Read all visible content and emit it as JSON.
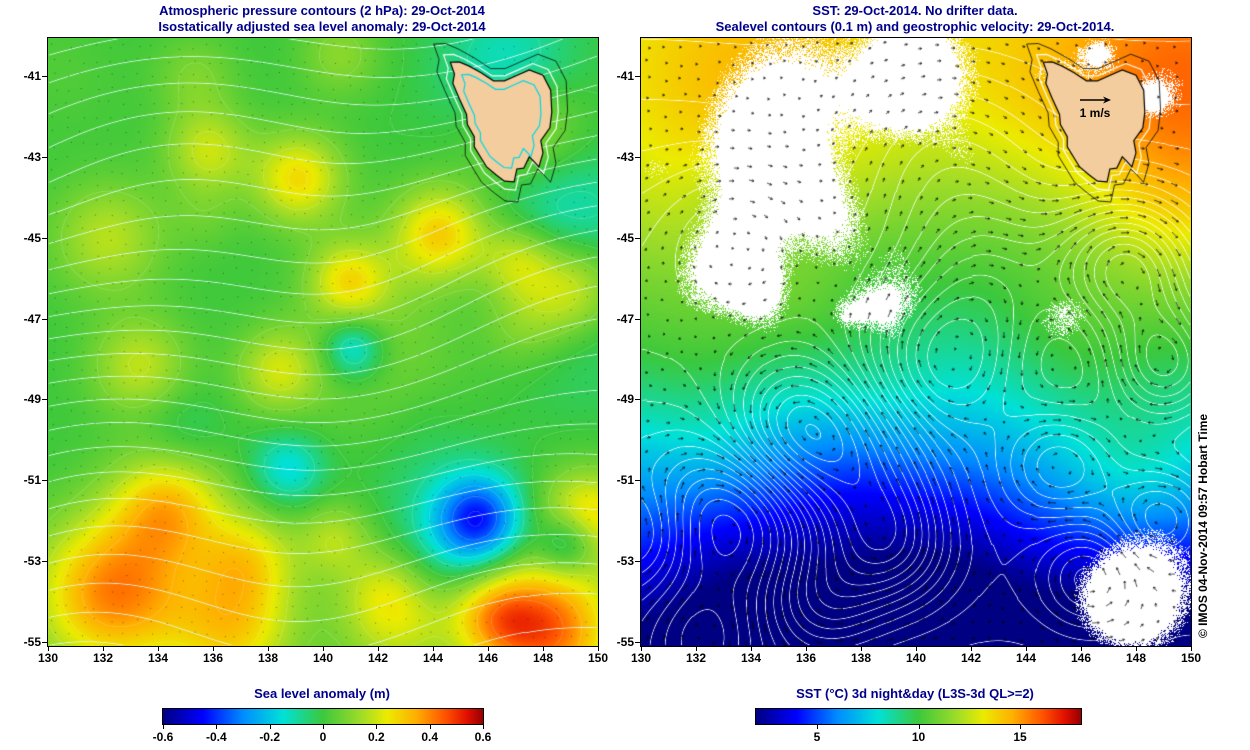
{
  "watermark": "© IMOS 04-Nov-2014 09:57 Hobart Time",
  "velocity_legend": "1 m/s",
  "colors": {
    "title": "#00008b",
    "tick": "#000000",
    "land": "#f3cd9e",
    "coast": "#000000",
    "pressure_contour": "#e1fbf6",
    "sealevel_contour": "#ffffff",
    "cloud": "#ffffff"
  },
  "chart_data": [
    {
      "type": "heatmap",
      "panel": "sea-level-anomaly",
      "title_lines": [
        "Atmospheric pressure contours (2 hPa): 29-Oct-2014",
        "Isostatically adjusted sea level anomaly: 29-Oct-2014"
      ],
      "xlim": [
        130,
        150
      ],
      "ylim": [
        -55.1,
        -40.06
      ],
      "x_ticks": [
        130,
        132,
        134,
        136,
        138,
        140,
        142,
        144,
        146,
        148,
        150
      ],
      "y_ticks": [
        -41,
        -43,
        -45,
        -47,
        -49,
        -51,
        -53,
        -55
      ],
      "grid": false,
      "colorbar": {
        "label": "Sea level anomaly (m)",
        "colormap": "jet",
        "range": [
          -0.6,
          0.6
        ],
        "ticks": [
          -0.6,
          -0.4,
          -0.2,
          0,
          0.2,
          0.4,
          0.6
        ],
        "units": "m",
        "position": "bottom"
      },
      "overlays": [
        "atmospheric pressure contours every 2 hPa (pale lines)",
        "sparse surface velocity dots (black)",
        "Tasmania land mask with coastline"
      ]
    },
    {
      "type": "heatmap",
      "panel": "sst",
      "title_lines": [
        "SST: 29-Oct-2014. No drifter data.",
        "Sealevel contours (0.1 m) and geostrophic velocity: 29-Oct-2014."
      ],
      "xlim": [
        130,
        150
      ],
      "ylim": [
        -55.1,
        -40.06
      ],
      "x_ticks": [
        130,
        132,
        134,
        136,
        138,
        140,
        142,
        144,
        146,
        148,
        150
      ],
      "y_ticks": [
        -41,
        -43,
        -45,
        -47,
        -49,
        -51,
        -53,
        -55
      ],
      "grid": false,
      "colorbar": {
        "label": "SST (°C) 3d night&day (L3S-3d QL>=2)",
        "colormap": "jet",
        "range": [
          2,
          18
        ],
        "ticks": [
          5,
          10,
          15
        ],
        "units": "°C",
        "position": "bottom"
      },
      "overlays": [
        "sealevel contours every 0.1 m (white lines)",
        "geostrophic velocity arrows (black)",
        "reference arrow 1 m/s",
        "cloud-masked pixels (white patches)",
        "Tasmania land mask with coastline"
      ]
    }
  ]
}
